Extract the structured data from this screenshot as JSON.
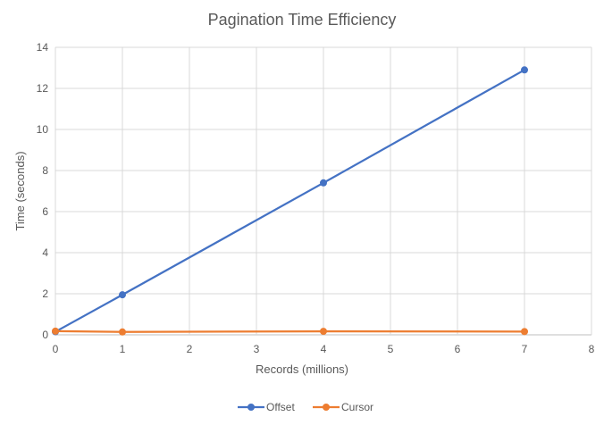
{
  "chart_data": {
    "type": "line",
    "title": "Pagination Time Efficiency",
    "xlabel": "Records (millions)",
    "ylabel": "Time (seconds)",
    "xlim": [
      0,
      8
    ],
    "ylim": [
      0,
      14
    ],
    "xticks": [
      0,
      1,
      2,
      3,
      4,
      5,
      6,
      7,
      8
    ],
    "yticks": [
      0,
      2,
      4,
      6,
      8,
      10,
      12,
      14
    ],
    "grid": true,
    "legend": "bottom",
    "series": [
      {
        "name": "Offset",
        "color": "#4472C4",
        "x": [
          0,
          1,
          4,
          7
        ],
        "y": [
          0.15,
          1.95,
          7.4,
          12.9
        ]
      },
      {
        "name": "Cursor",
        "color": "#ED7D31",
        "x": [
          0,
          1,
          4,
          7
        ],
        "y": [
          0.18,
          0.14,
          0.17,
          0.16
        ]
      }
    ]
  }
}
